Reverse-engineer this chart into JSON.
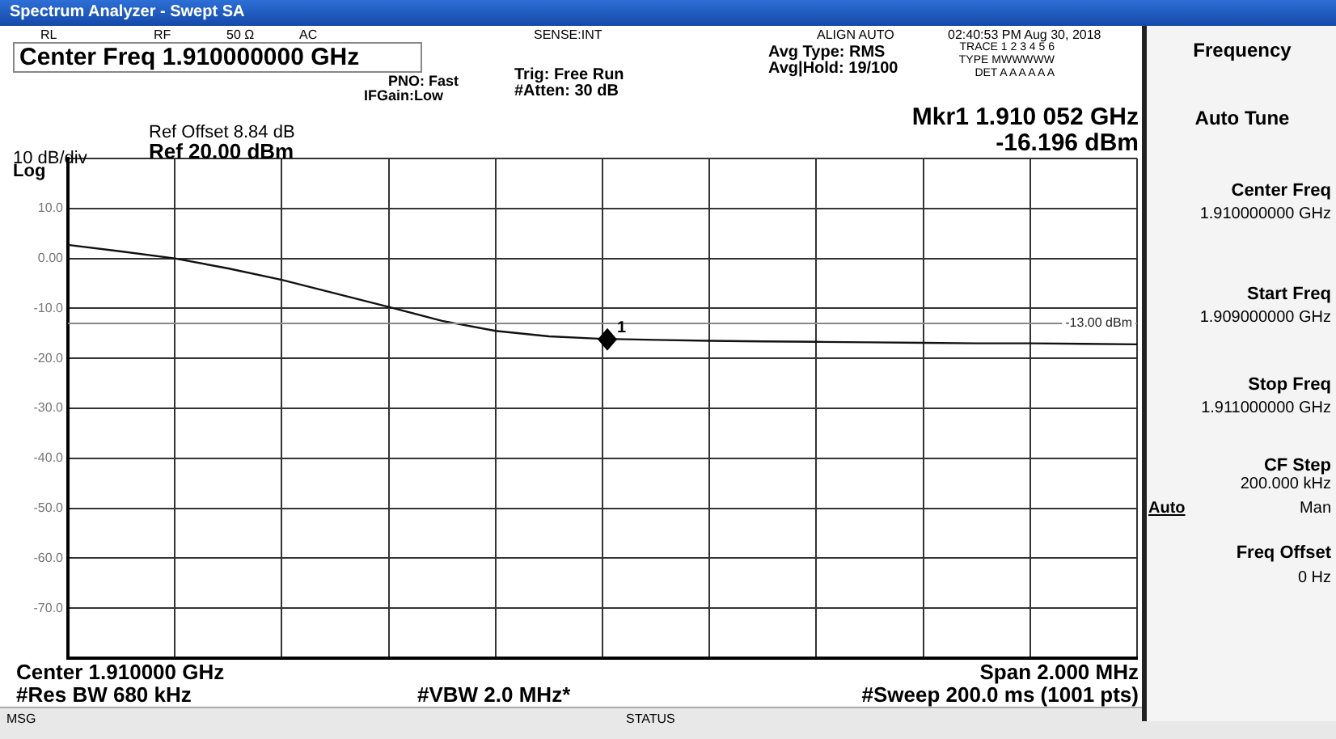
{
  "chart_data": {
    "type": "line",
    "title": "Spectrum Analyzer - Swept SA",
    "subtitle": "Center Freq 1.910000000 GHz",
    "categories": [
      null,
      null,
      null,
      null,
      null,
      null,
      null,
      null,
      null,
      null,
      null,
      null,
      null,
      null,
      null,
      null,
      null,
      null,
      null,
      null,
      null
    ],
    "series": [
      {
        "color": "#111111",
        "values": [
          2.7,
          1.4,
          0,
          -2.0,
          -4.3,
          -7.0,
          -9.7,
          -12.5,
          -14.5,
          -15.6,
          -16.1,
          -16.3,
          -16.5,
          -16.6,
          -16.7,
          -16.8,
          -16.9,
          -17.0,
          -17.0,
          -17.1,
          -17.2
        ]
      }
    ],
    "ylim": [
      -80,
      20
    ],
    "yticks": [
      {
        "value": 20,
        "label": null
      },
      {
        "value": 10,
        "label": "10.0"
      },
      {
        "value": 0,
        "label": "0.00"
      },
      {
        "value": -10,
        "label": "-10.0"
      },
      {
        "value": -20,
        "label": "-20.0"
      },
      {
        "value": -30,
        "label": "-30.0"
      },
      {
        "value": -40,
        "label": "-40.0"
      },
      {
        "value": -50,
        "label": "-50.0"
      },
      {
        "value": -60,
        "label": "-60.0"
      },
      {
        "value": -70,
        "label": "-70.0"
      },
      {
        "value": -80,
        "label": null
      }
    ],
    "tick_labels": "y",
    "grid": true,
    "legend": false,
    "marker": "none",
    "line_style": "solid",
    "ref_lines": [
      {
        "axis": "y",
        "value": -13,
        "label": "-13.00 dBm",
        "color": "#888888"
      }
    ],
    "annotations": [
      "RL",
      "RF",
      "50 Ω",
      "AC",
      "SENSE:INT",
      "ALIGN AUTO",
      "02:40:53 PM Aug 30, 2018",
      "PNO: Fast",
      "IFGain:Low",
      "Trig: Free Run",
      "#Atten: 30 dB",
      "Avg Type: RMS",
      "Avg|Hold: 19/100",
      "TRACE 1 2 3 4 5 6",
      "TYPE MWWWWW",
      "DET A A A A A A",
      "Mkr1 1.910 052 GHz",
      "-16.196 dBm",
      "Ref Offset 8.84 dB",
      "Ref 20.00 dBm",
      "10 dB/div",
      "Log",
      "Center 1.910000 GHz",
      "#Res BW 680 kHz",
      "#VBW 2.0 MHz*",
      "Span 2.000 MHz",
      "#Sweep  200.0 ms (1001 pts)",
      "MSG",
      "STATUS",
      "Frequency",
      "Auto Tune",
      "Center Freq",
      "1.910000000 GHz",
      "Start Freq",
      "1.909000000 GHz",
      "Stop Freq",
      "1.911000000 GHz",
      "CF Step",
      "200.000 kHz",
      "Auto",
      "Man",
      "Freq Offset",
      "0 Hz",
      {
        "text": "1",
        "y": -16.196
      }
    ]
  }
}
